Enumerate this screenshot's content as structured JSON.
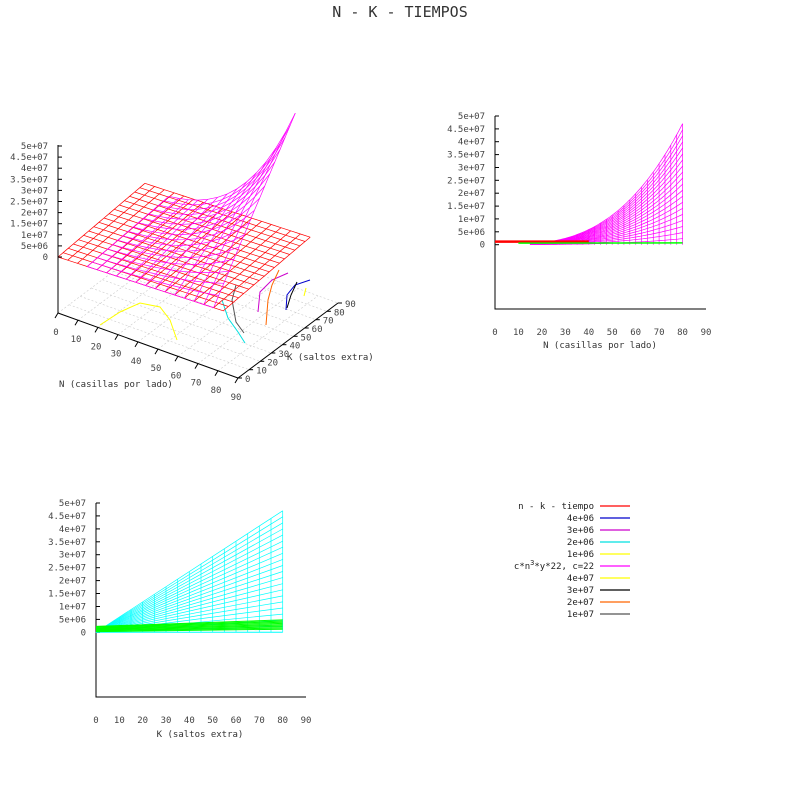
{
  "title": "N - K - TIEMPOS",
  "colors": {
    "measured": "#ff0000",
    "fitted": "#ff00ff",
    "side_fitted": "#00ffff",
    "side_measured": "#00ff00",
    "c1": "#0000cc",
    "c2": "#cc00cc",
    "c3": "#00e0e0",
    "c4": "#ffff00",
    "c5": "#000000",
    "c6": "#ff6600",
    "c7": "#555555",
    "axis": "#000000",
    "tick_text": "#444444",
    "grid": "#cccccc"
  },
  "chart_data": [
    {
      "id": "surface-3d",
      "type": "surface",
      "xlabel": "N (casillas por lado)",
      "ylabel": "K (saltos extra)",
      "x_ticks": [
        "0",
        "10",
        "20",
        "30",
        "40",
        "50",
        "60",
        "70",
        "80",
        "90"
      ],
      "y_ticks": [
        "0",
        "10",
        "20",
        "30",
        "40",
        "50",
        "60",
        "70",
        "80",
        "90"
      ],
      "z_ticks": [
        "0",
        "5e+06",
        "1e+07",
        "1.5e+07",
        "2e+07",
        "2.5e+07",
        "3e+07",
        "3.5e+07",
        "4e+07",
        "4.5e+07",
        "5e+07"
      ],
      "xlim": [
        0,
        90
      ],
      "ylim": [
        0,
        90
      ],
      "zlim": [
        0,
        50000000
      ],
      "fitted_surface": {
        "formula": "c*n^3*y*22",
        "c": 22,
        "x_range": [
          15,
          80
        ],
        "y_range": [
          0,
          80
        ],
        "z_max": 47000000
      },
      "measured_surface": {
        "z_level": 1500000
      },
      "series": [
        {
          "name": "n - k - tiempo",
          "color_key": "measured"
        },
        {
          "name": "4e+06",
          "color_key": "c1"
        },
        {
          "name": "3e+06",
          "color_key": "c2"
        },
        {
          "name": "2e+06",
          "color_key": "c3"
        },
        {
          "name": "1e+06",
          "color_key": "c4"
        },
        {
          "name": "c*n",
          "sup": "3",
          "suffix": "*y*22, c=22",
          "color_key": "fitted"
        },
        {
          "name": "4e+07",
          "color_key": "c4"
        },
        {
          "name": "3e+07",
          "color_key": "c5"
        },
        {
          "name": "2e+07",
          "color_key": "c6"
        },
        {
          "name": "1e+07",
          "color_key": "c7"
        }
      ]
    },
    {
      "id": "projection-n",
      "type": "line",
      "xlabel": "N (casillas por lado)",
      "x_ticks": [
        "0",
        "10",
        "20",
        "30",
        "40",
        "50",
        "60",
        "70",
        "80",
        "90"
      ],
      "y_ticks": [
        "0",
        "5e+06",
        "1e+07",
        "1.5e+07",
        "2e+07",
        "2.5e+07",
        "3e+07",
        "3.5e+07",
        "4e+07",
        "4.5e+07",
        "5e+07"
      ],
      "xlim": [
        0,
        90
      ],
      "ylim": [
        -25000000,
        50000000
      ],
      "fitted_max": 47000000,
      "fitted_x_range": [
        15,
        80
      ]
    },
    {
      "id": "projection-k",
      "type": "line",
      "xlabel": "K (saltos extra)",
      "x_ticks": [
        "0",
        "10",
        "20",
        "30",
        "40",
        "50",
        "60",
        "70",
        "80",
        "90"
      ],
      "y_ticks": [
        "0",
        "5e+06",
        "1e+07",
        "1.5e+07",
        "2e+07",
        "2.5e+07",
        "3e+07",
        "3.5e+07",
        "4e+07",
        "4.5e+07",
        "5e+07"
      ],
      "xlim": [
        0,
        90
      ],
      "ylim": [
        -25000000,
        50000000
      ],
      "fitted_max": 47000000,
      "fitted_x_range": [
        0,
        80
      ]
    }
  ]
}
